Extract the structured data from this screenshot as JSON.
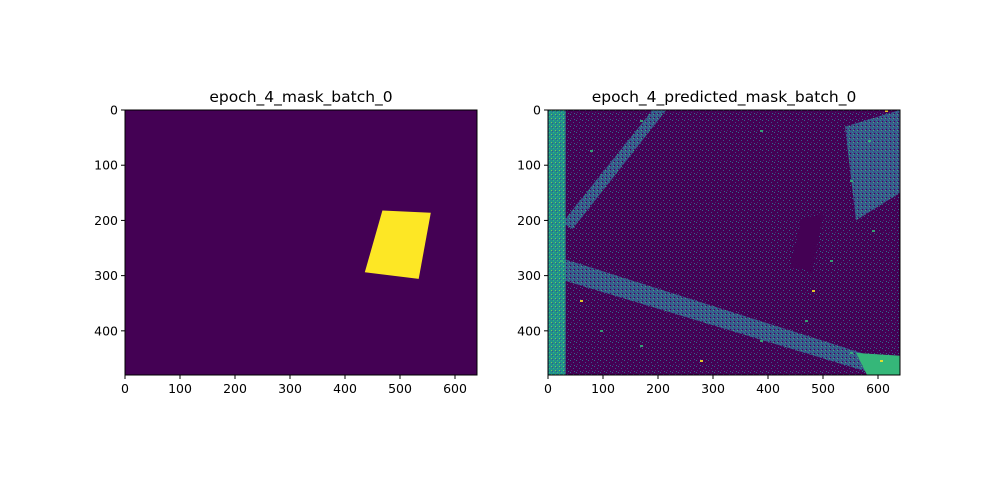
{
  "chart_data": [
    {
      "type": "heatmap",
      "title": "epoch_4_mask_batch_0",
      "xlabel": "",
      "ylabel": "",
      "xlim": [
        0,
        640
      ],
      "ylim": [
        480,
        0
      ],
      "x_ticks": [
        "0",
        "100",
        "200",
        "300",
        "400",
        "500",
        "600"
      ],
      "y_ticks": [
        "0",
        "100",
        "200",
        "300",
        "400"
      ],
      "colormap": "viridis",
      "background_value": 0,
      "mask_polygon": {
        "value": 1,
        "points": [
          [
            468,
            182
          ],
          [
            556,
            186
          ],
          [
            534,
            306
          ],
          [
            436,
            294
          ]
        ]
      }
    },
    {
      "type": "heatmap",
      "title": "epoch_4_predicted_mask_batch_0",
      "xlabel": "",
      "ylabel": "",
      "xlim": [
        0,
        640
      ],
      "ylim": [
        480,
        0
      ],
      "x_ticks": [
        "0",
        "100",
        "200",
        "300",
        "400",
        "500",
        "600"
      ],
      "y_ticks": [
        "0",
        "100",
        "200",
        "300",
        "400"
      ],
      "colormap": "viridis",
      "noise_features": {
        "left_edge_band": [
          [
            0,
            0
          ],
          [
            32,
            0
          ],
          [
            32,
            480
          ],
          [
            0,
            480
          ]
        ],
        "upper_diagonal_band": [
          [
            190,
            0
          ],
          [
            215,
            0
          ],
          [
            45,
            215
          ],
          [
            25,
            205
          ]
        ],
        "lower_diagonal_band": [
          [
            0,
            270
          ],
          [
            30,
            270
          ],
          [
            640,
            462
          ],
          [
            640,
            480
          ],
          [
            600,
            480
          ],
          [
            0,
            300
          ]
        ],
        "dark_hole": [
          [
            462,
            195
          ],
          [
            500,
            190
          ],
          [
            480,
            292
          ],
          [
            440,
            284
          ]
        ],
        "right_bright_region": [
          [
            540,
            30
          ],
          [
            640,
            0
          ],
          [
            640,
            150
          ],
          [
            560,
            200
          ]
        ],
        "bottom_right_glow": [
          [
            560,
            440
          ],
          [
            640,
            445
          ],
          [
            640,
            480
          ],
          [
            580,
            480
          ]
        ]
      }
    }
  ],
  "colors": {
    "viridis_low": "#440154",
    "viridis_mid_low": "#31688e",
    "viridis_mid": "#21918c",
    "viridis_mid_high": "#35b779",
    "viridis_high": "#fde725"
  }
}
